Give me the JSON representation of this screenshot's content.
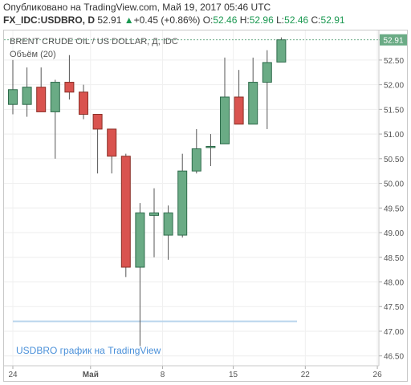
{
  "header": {
    "published": "Опубликовано на TradingView.com, Май 19, 2017 05:46 UTC",
    "symbol": "FX_IDC:USDBRO, D",
    "last": "52.91",
    "change_arrow": "▲",
    "change": "+0.45 (+0.86%)",
    "o_label": "O:",
    "o_value": "52.46",
    "h_label": "H:",
    "h_value": "52.96",
    "l_label": "L:",
    "l_value": "52.46",
    "c_label": "C:",
    "c_value": "52.91"
  },
  "legend": {
    "title": "BRENT CRUDE OIL / US DOLLAR, Д, IDC",
    "volume": "Объём (20)"
  },
  "watermark": "USDBRO график на TradingView",
  "colors": {
    "up": "#6aab85",
    "down": "#d9534f",
    "up_border": "#2e6b4b",
    "down_border": "#8a2f26",
    "wick": "#555555",
    "price_tag": "#6aab85"
  },
  "chart_data": {
    "type": "candlestick",
    "x_ticks": [
      "24",
      "Май",
      "8",
      "15",
      "22",
      "26"
    ],
    "y_ticks": [
      "52.91",
      "52.50",
      "52.00",
      "51.50",
      "51.00",
      "50.50",
      "50.00",
      "49.50",
      "49.00",
      "48.50",
      "48.00",
      "47.50",
      "47.00",
      "46.50"
    ],
    "ylim": [
      46.3,
      53.1
    ],
    "last_price": 52.91,
    "candles": [
      {
        "x": 0,
        "o": 51.6,
        "h": 52.5,
        "l": 51.4,
        "c": 51.9
      },
      {
        "x": 1,
        "o": 51.6,
        "h": 52.35,
        "l": 51.35,
        "c": 51.95
      },
      {
        "x": 2,
        "o": 51.95,
        "h": 52.35,
        "l": 51.45,
        "c": 51.45
      },
      {
        "x": 3,
        "o": 51.45,
        "h": 52.1,
        "l": 50.5,
        "c": 52.05
      },
      {
        "x": 4,
        "o": 52.05,
        "h": 52.6,
        "l": 51.7,
        "c": 51.85
      },
      {
        "x": 5,
        "o": 51.85,
        "h": 52.0,
        "l": 51.3,
        "c": 51.4
      },
      {
        "x": 6,
        "o": 51.4,
        "h": 51.4,
        "l": 50.2,
        "c": 51.1
      },
      {
        "x": 7,
        "o": 51.1,
        "h": 51.1,
        "l": 50.2,
        "c": 50.55
      },
      {
        "x": 8,
        "o": 50.55,
        "h": 50.6,
        "l": 48.1,
        "c": 48.3
      },
      {
        "x": 9,
        "o": 48.3,
        "h": 49.6,
        "l": 46.7,
        "c": 49.4
      },
      {
        "x": 10,
        "o": 49.35,
        "h": 49.9,
        "l": 48.5,
        "c": 49.4
      },
      {
        "x": 11,
        "o": 48.95,
        "h": 49.55,
        "l": 48.45,
        "c": 49.4
      },
      {
        "x": 12,
        "o": 48.95,
        "h": 50.6,
        "l": 48.9,
        "c": 50.25
      },
      {
        "x": 13,
        "o": 50.25,
        "h": 51.1,
        "l": 50.2,
        "c": 50.7
      },
      {
        "x": 14,
        "o": 50.75,
        "h": 51.0,
        "l": 50.35,
        "c": 50.75
      },
      {
        "x": 15,
        "o": 50.8,
        "h": 52.55,
        "l": 50.8,
        "c": 51.75
      },
      {
        "x": 16,
        "o": 51.75,
        "h": 52.3,
        "l": 51.2,
        "c": 51.2
      },
      {
        "x": 17,
        "o": 51.2,
        "h": 52.55,
        "l": 51.2,
        "c": 52.05
      },
      {
        "x": 18,
        "o": 52.05,
        "h": 52.7,
        "l": 51.1,
        "c": 52.45
      },
      {
        "x": 19,
        "o": 52.46,
        "h": 52.96,
        "l": 52.46,
        "c": 52.91
      }
    ],
    "volume_line": 47.2,
    "grid": true
  }
}
